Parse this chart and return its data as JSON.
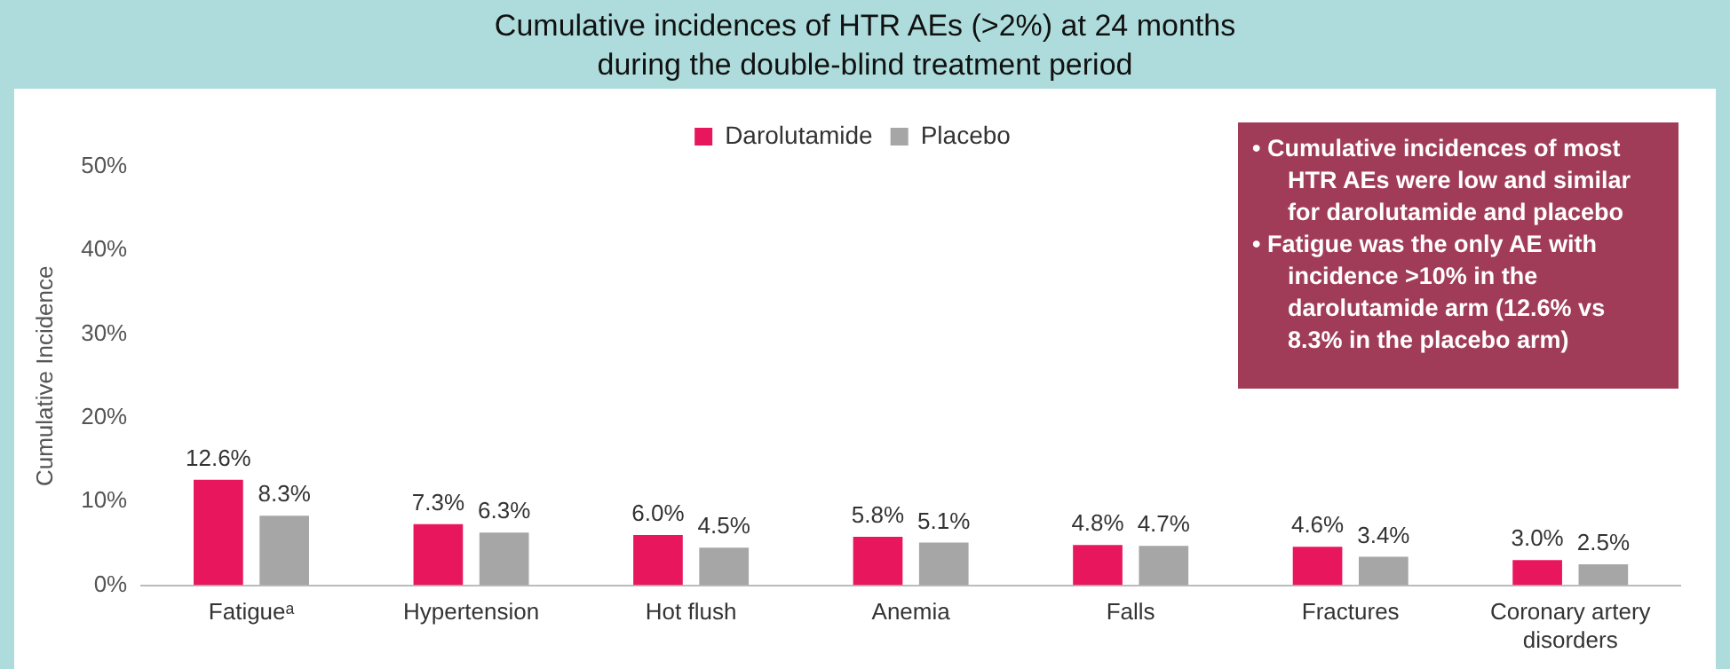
{
  "chart_data": {
    "type": "bar",
    "title": "Cumulative incidences of HTR AEs (>2%) at 24 months\nduring the double-blind treatment period",
    "ylabel": "Cumulative Incidence",
    "categories": [
      "Fatigueᵃ",
      "Hypertension",
      "Hot flush",
      "Anemia",
      "Falls",
      "Fractures",
      "Coronary artery disorders"
    ],
    "series": [
      {
        "name": "Darolutamide",
        "color": "#e8175d",
        "values": [
          12.6,
          7.3,
          6.0,
          5.8,
          4.8,
          4.6,
          3.0
        ],
        "value_labels": [
          "12.6%",
          "7.3%",
          "6.0%",
          "5.8%",
          "4.8%",
          "4.6%",
          "3.0%"
        ]
      },
      {
        "name": "Placebo",
        "color": "#a6a6a6",
        "values": [
          8.3,
          6.3,
          4.5,
          5.1,
          4.7,
          3.4,
          2.5
        ],
        "value_labels": [
          "8.3%",
          "6.3%",
          "4.5%",
          "5.1%",
          "4.7%",
          "3.4%",
          "2.5%"
        ]
      }
    ],
    "ylim": [
      0,
      50
    ],
    "yticks": [
      {
        "value": 0,
        "label": "0%"
      },
      {
        "value": 10,
        "label": "10%"
      },
      {
        "value": 20,
        "label": "20%"
      },
      {
        "value": 30,
        "label": "30%"
      },
      {
        "value": 40,
        "label": "40%"
      },
      {
        "value": 50,
        "label": "50%"
      }
    ],
    "grid": false,
    "legend": "top",
    "annotations": [
      "•  Cumulative incidences of most HTR AEs were low and similar for darolutamide and placebo",
      "•  Fatigue was the only AE with incidence >10%  in the darolutamide arm (12.6% vs 8.3% in the placebo arm)"
    ]
  }
}
